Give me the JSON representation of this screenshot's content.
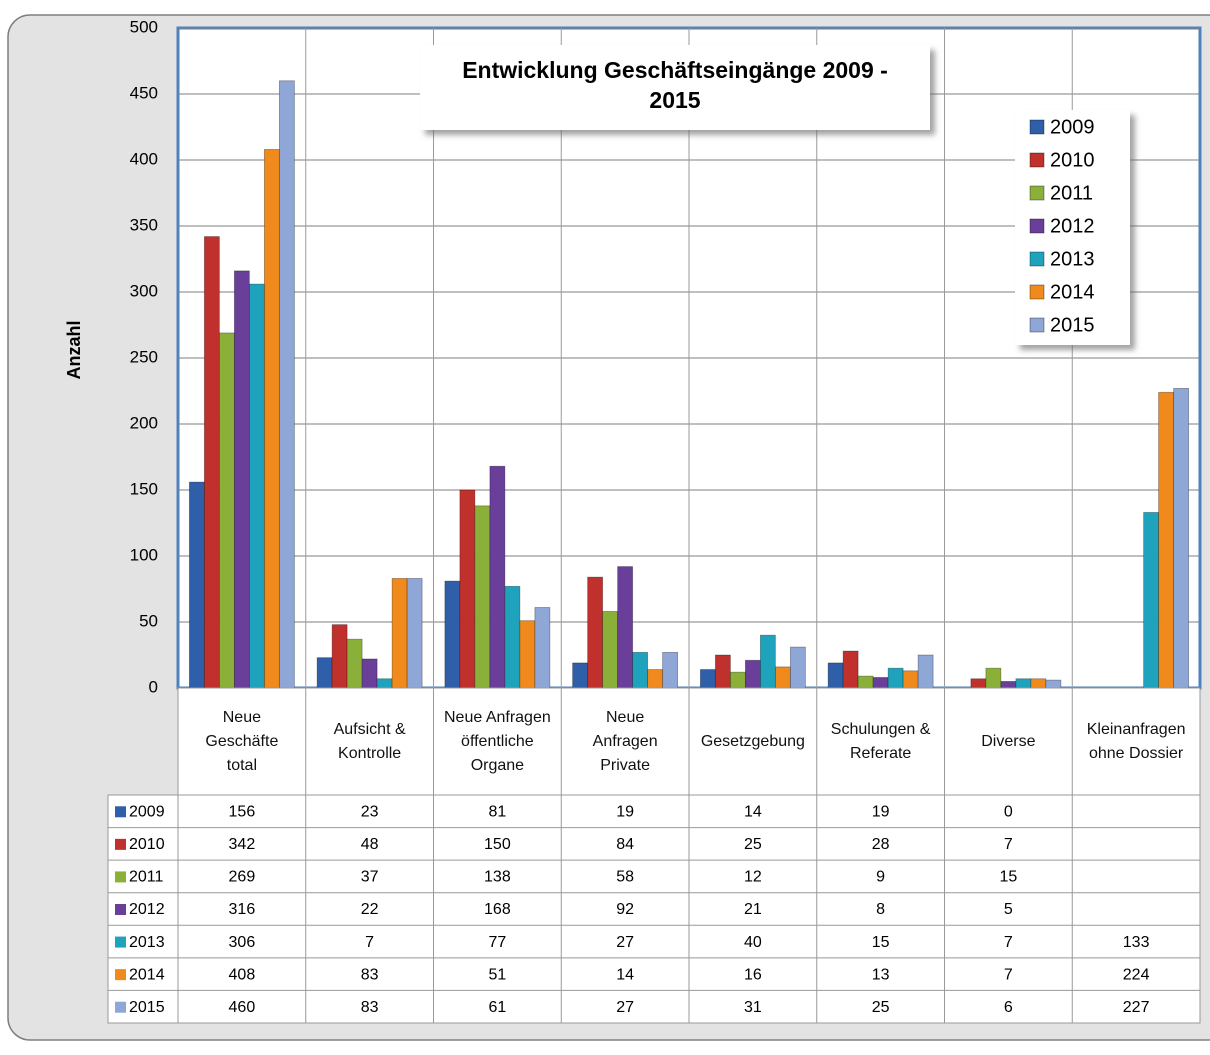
{
  "chart_data": {
    "type": "bar",
    "title": "Entwicklung Geschäftseingänge 2009 - 2015",
    "y_label": "Anzahl",
    "categories": [
      "Neue Geschäfte total",
      "Aufsicht & Kontrolle",
      "Neue Anfragen öffentliche Organe",
      "Neue Anfragen Private",
      "Gesetzgebung",
      "Schulungen & Referate",
      "Diverse",
      "Kleinanfragen ohne Dossier"
    ],
    "series": [
      {
        "name": "2009",
        "color": "#2e5fa8",
        "values": [
          156,
          23,
          81,
          19,
          14,
          19,
          0,
          null
        ]
      },
      {
        "name": "2010",
        "color": "#c0302c",
        "values": [
          342,
          48,
          150,
          84,
          25,
          28,
          7,
          null
        ]
      },
      {
        "name": "2011",
        "color": "#8bb03a",
        "values": [
          269,
          37,
          138,
          58,
          12,
          9,
          15,
          null
        ]
      },
      {
        "name": "2012",
        "color": "#6a3f9a",
        "values": [
          316,
          22,
          168,
          92,
          21,
          8,
          5,
          null
        ]
      },
      {
        "name": "2013",
        "color": "#1fa3bd",
        "values": [
          306,
          7,
          77,
          27,
          40,
          15,
          7,
          133
        ]
      },
      {
        "name": "2014",
        "color": "#f08a1c",
        "values": [
          408,
          83,
          51,
          14,
          16,
          13,
          7,
          224
        ]
      },
      {
        "name": "2015",
        "color": "#8ea7d6",
        "values": [
          460,
          83,
          61,
          27,
          31,
          25,
          6,
          227
        ]
      }
    ],
    "ylim": [
      0,
      500
    ],
    "yticks": [
      0,
      50,
      100,
      150,
      200,
      250,
      300,
      350,
      400,
      450,
      500
    ],
    "grid": true,
    "legend": "top-right",
    "data_table": true
  }
}
